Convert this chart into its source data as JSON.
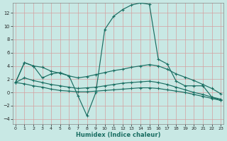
{
  "xlabel": "Humidex (Indice chaleur)",
  "bg_color": "#c8e8e4",
  "grid_color": "#d4a0a0",
  "line_color": "#1a6e62",
  "xlim": [
    -0.3,
    23.3
  ],
  "ylim": [
    -4.8,
    13.5
  ],
  "yticks": [
    -4,
    -2,
    0,
    2,
    4,
    6,
    8,
    10,
    12
  ],
  "xticks": [
    0,
    1,
    2,
    3,
    4,
    5,
    6,
    7,
    8,
    9,
    10,
    11,
    12,
    13,
    14,
    15,
    16,
    17,
    18,
    19,
    20,
    21,
    22,
    23
  ],
  "curve1_x": [
    0,
    1,
    2,
    3,
    4,
    5,
    6,
    7,
    8,
    9,
    10,
    11,
    12,
    13,
    14,
    15,
    16,
    17,
    18,
    19,
    20,
    21,
    22,
    23
  ],
  "curve1_y": [
    1.5,
    4.5,
    4.0,
    3.8,
    3.2,
    2.9,
    2.5,
    2.2,
    2.4,
    2.7,
    3.0,
    3.3,
    3.5,
    3.8,
    4.0,
    4.2,
    4.0,
    3.5,
    2.8,
    2.3,
    1.8,
    1.2,
    0.6,
    -0.2
  ],
  "curve2_x": [
    0,
    1,
    2,
    3,
    4,
    5,
    6,
    7,
    8,
    9,
    10,
    11,
    12,
    13,
    14,
    15,
    16,
    17,
    18,
    19,
    20,
    21,
    22,
    23
  ],
  "curve2_y": [
    1.5,
    4.5,
    4.0,
    2.2,
    2.8,
    3.0,
    2.5,
    -0.5,
    -3.5,
    0.0,
    9.5,
    11.5,
    12.5,
    13.2,
    13.5,
    13.3,
    5.0,
    4.3,
    1.7,
    1.0,
    1.0,
    1.0,
    -0.7,
    -1.2
  ],
  "curve3_x": [
    0,
    1,
    2,
    3,
    4,
    5,
    6,
    7,
    8,
    9,
    10,
    11,
    12,
    13,
    14,
    15,
    16,
    17,
    18,
    19,
    20,
    21,
    22,
    23
  ],
  "curve3_y": [
    1.5,
    1.3,
    1.0,
    0.8,
    0.5,
    0.3,
    0.2,
    0.1,
    0.1,
    0.2,
    0.3,
    0.4,
    0.5,
    0.6,
    0.7,
    0.7,
    0.6,
    0.4,
    0.2,
    0.0,
    -0.3,
    -0.6,
    -0.9,
    -1.2
  ],
  "curve4_x": [
    0,
    1,
    2,
    3,
    4,
    5,
    6,
    7,
    8,
    9,
    10,
    11,
    12,
    13,
    14,
    15,
    16,
    17,
    18,
    19,
    20,
    21,
    22,
    23
  ],
  "curve4_y": [
    1.5,
    2.2,
    1.8,
    1.5,
    1.2,
    1.0,
    0.8,
    0.6,
    0.7,
    0.8,
    1.0,
    1.2,
    1.4,
    1.5,
    1.6,
    1.7,
    1.5,
    1.2,
    0.8,
    0.4,
    0.0,
    -0.3,
    -0.7,
    -1.0
  ]
}
